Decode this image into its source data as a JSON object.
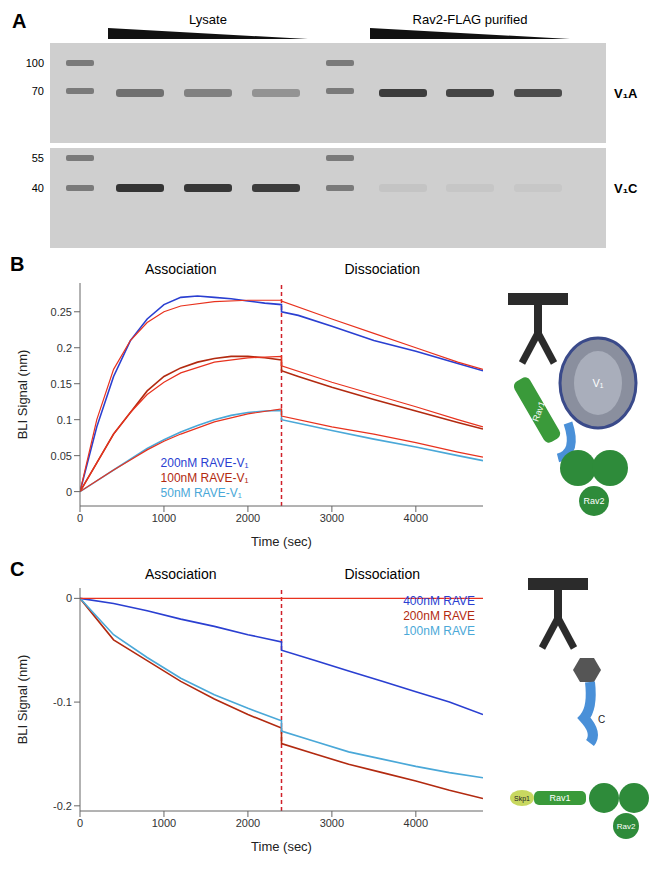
{
  "blot": {
    "panel": "A",
    "groups": [
      "Lysate",
      "Rav2-FLAG purified"
    ],
    "rows": [
      {
        "label": "V₁A",
        "markers": [
          100,
          70
        ]
      },
      {
        "label": "V₁C",
        "markers": [
          55,
          40
        ]
      }
    ]
  },
  "chart_data": [
    {
      "panel": "B",
      "type": "line",
      "section_labels": [
        "Association",
        "Dissociation"
      ],
      "divider_x": 2400,
      "xlabel": "Time (sec)",
      "ylabel": "BLI Signal (nm)",
      "xlim": [
        0,
        4800
      ],
      "xticks": [
        0,
        1000,
        2000,
        3000,
        4000
      ],
      "ylim": [
        -0.02,
        0.29
      ],
      "yticks": [
        0,
        0.05,
        0.1,
        0.15,
        0.2,
        0.25
      ],
      "legend": "lower center",
      "diagram_labels": [
        "Rav1",
        "V₁",
        "Rav2"
      ],
      "series": [
        {
          "name": "200nM RAVE-V₁",
          "color": "#2a3fd1",
          "x": [
            0,
            200,
            400,
            600,
            800,
            1000,
            1200,
            1400,
            1600,
            1800,
            2000,
            2200,
            2400,
            2400,
            2600,
            3000,
            3500,
            4000,
            4500,
            4800
          ],
          "values": [
            0,
            0.09,
            0.16,
            0.21,
            0.24,
            0.26,
            0.27,
            0.272,
            0.27,
            0.268,
            0.265,
            0.262,
            0.26,
            0.25,
            0.245,
            0.23,
            0.21,
            0.195,
            0.178,
            0.168
          ]
        },
        {
          "name": "100nM RAVE-V₁",
          "color": "#b22a10",
          "x": [
            0,
            200,
            400,
            600,
            800,
            1000,
            1200,
            1400,
            1600,
            1800,
            2000,
            2200,
            2400,
            2400,
            2600,
            3000,
            3500,
            4000,
            4500,
            4800
          ],
          "values": [
            0,
            0.04,
            0.08,
            0.11,
            0.14,
            0.16,
            0.172,
            0.18,
            0.185,
            0.188,
            0.188,
            0.186,
            0.183,
            0.168,
            0.16,
            0.145,
            0.128,
            0.112,
            0.096,
            0.087
          ]
        },
        {
          "name": "50nM RAVE-V₁",
          "color": "#4aa8d8",
          "x": [
            0,
            200,
            400,
            600,
            800,
            1000,
            1200,
            1400,
            1600,
            1800,
            2000,
            2200,
            2400,
            2400,
            2600,
            3000,
            3500,
            4000,
            4500,
            4800
          ],
          "values": [
            0,
            0.015,
            0.03,
            0.045,
            0.06,
            0.072,
            0.083,
            0.092,
            0.1,
            0.106,
            0.11,
            0.112,
            0.113,
            0.1,
            0.095,
            0.085,
            0.073,
            0.062,
            0.05,
            0.043
          ]
        },
        {
          "color": "#e8321e",
          "x": [
            0,
            200,
            400,
            600,
            800,
            1000,
            1200,
            1600,
            2000,
            2400,
            2400,
            3000,
            3500,
            4000,
            4500,
            4800
          ],
          "values": [
            0,
            0.1,
            0.17,
            0.21,
            0.235,
            0.25,
            0.258,
            0.264,
            0.266,
            0.266,
            0.265,
            0.24,
            0.22,
            0.2,
            0.18,
            0.17
          ]
        },
        {
          "color": "#e8321e",
          "x": [
            0,
            200,
            400,
            600,
            800,
            1000,
            1200,
            1600,
            2000,
            2400,
            2400,
            3000,
            3500,
            4000,
            4500,
            4800
          ],
          "values": [
            0,
            0.04,
            0.08,
            0.11,
            0.135,
            0.152,
            0.165,
            0.18,
            0.186,
            0.188,
            0.175,
            0.152,
            0.135,
            0.118,
            0.1,
            0.09
          ]
        },
        {
          "color": "#e8321e",
          "x": [
            0,
            200,
            400,
            600,
            800,
            1000,
            1200,
            1600,
            2000,
            2400,
            2400,
            3000,
            3500,
            4000,
            4500,
            4800
          ],
          "values": [
            0,
            0.015,
            0.03,
            0.044,
            0.058,
            0.07,
            0.08,
            0.097,
            0.108,
            0.115,
            0.105,
            0.09,
            0.08,
            0.068,
            0.055,
            0.048
          ]
        }
      ]
    },
    {
      "panel": "C",
      "type": "line",
      "section_labels": [
        "Association",
        "Dissociation"
      ],
      "divider_x": 2400,
      "xlabel": "Time (sec)",
      "ylabel": "BLI Signal (nm)",
      "xlim": [
        0,
        4800
      ],
      "xticks": [
        0,
        1000,
        2000,
        3000,
        4000
      ],
      "ylim": [
        -0.205,
        0.01
      ],
      "yticks": [
        -0.2,
        -0.1,
        0
      ],
      "legend": "upper right",
      "diagram_labels": [
        "C",
        "Skp1",
        "Rav1",
        "Rav2"
      ],
      "series": [
        {
          "name": "400nM RAVE",
          "color": "#2a3fd1",
          "x": [
            0,
            400,
            800,
            1200,
            1600,
            2000,
            2400,
            2400,
            2800,
            3200,
            3600,
            4000,
            4400,
            4800
          ],
          "values": [
            0,
            -0.005,
            -0.012,
            -0.02,
            -0.027,
            -0.035,
            -0.042,
            -0.05,
            -0.06,
            -0.07,
            -0.08,
            -0.09,
            -0.1,
            -0.112
          ]
        },
        {
          "name": "200nM RAVE",
          "color": "#b22a10",
          "x": [
            0,
            400,
            800,
            1200,
            1600,
            2000,
            2400,
            2400,
            2800,
            3200,
            3600,
            4000,
            4400,
            4800
          ],
          "values": [
            0,
            -0.04,
            -0.06,
            -0.08,
            -0.097,
            -0.112,
            -0.125,
            -0.14,
            -0.15,
            -0.16,
            -0.168,
            -0.176,
            -0.185,
            -0.193
          ]
        },
        {
          "name": "100nM RAVE",
          "color": "#4aa8d8",
          "x": [
            0,
            400,
            800,
            1200,
            1600,
            2000,
            2400,
            2400,
            2800,
            3200,
            3600,
            4000,
            4400,
            4800
          ],
          "values": [
            0,
            -0.035,
            -0.057,
            -0.077,
            -0.093,
            -0.106,
            -0.118,
            -0.128,
            -0.138,
            -0.148,
            -0.155,
            -0.162,
            -0.168,
            -0.173
          ]
        },
        {
          "color": "#e8321e",
          "x": [
            0,
            4800
          ],
          "values": [
            0,
            0
          ]
        }
      ]
    }
  ]
}
